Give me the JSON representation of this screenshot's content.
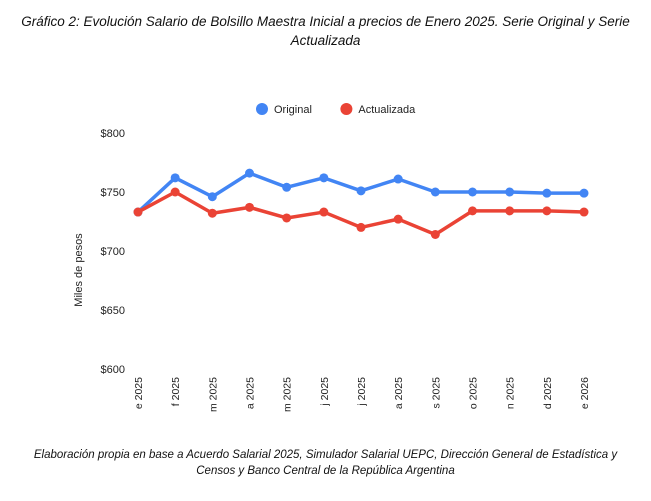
{
  "chart_data": {
    "type": "line",
    "title": "Gráfico 2: Evolución Salario de Bolsillo Maestra Inicial a precios de Enero 2025. Serie Original y Serie Actualizada",
    "caption": "Elaboración propia en base a Acuerdo Salarial 2025, Simulador Salarial UEPC, Dirección General de Estadística y Censos y Banco Central de la República Argentina",
    "xlabel": "",
    "ylabel": "Miles de pesos",
    "ylim": [
      600,
      800
    ],
    "yticks": [
      600,
      650,
      700,
      750,
      800
    ],
    "ytick_labels": [
      "$600",
      "$650",
      "$700",
      "$750",
      "$800"
    ],
    "categories": [
      "e 2025",
      "f 2025",
      "m 2025",
      "a 2025",
      "m 2025",
      "j 2025",
      "j 2025",
      "a 2025",
      "s 2025",
      "o 2025",
      "n 2025",
      "d 2025",
      "e 2026"
    ],
    "legend_position": "top-center",
    "grid": false,
    "series": [
      {
        "name": "Original",
        "color": "#4285f4",
        "values": [
          733,
          762,
          746,
          766,
          754,
          762,
          751,
          761,
          750,
          750,
          750,
          749,
          749
        ]
      },
      {
        "name": "Actualizada",
        "color": "#ea4335",
        "values": [
          733,
          750,
          732,
          737,
          728,
          733,
          720,
          727,
          714,
          734,
          734,
          734,
          733
        ]
      }
    ]
  }
}
